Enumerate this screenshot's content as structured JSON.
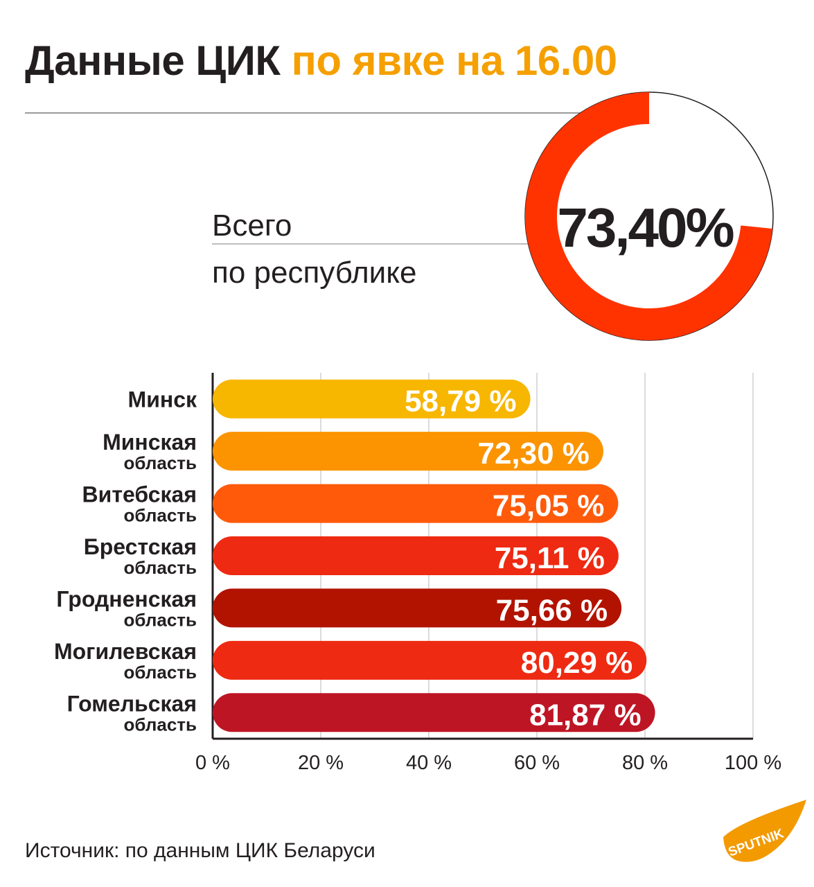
{
  "header": {
    "title_main": "Данные ЦИК",
    "title_highlight": "по явке на 16.00"
  },
  "total": {
    "label_line1": "Всего",
    "label_line2": "по республике",
    "value": 73.4,
    "value_text": "73,40%"
  },
  "chart_data": {
    "type": "bar",
    "orientation": "horizontal",
    "categories": [
      [
        "Минск",
        ""
      ],
      [
        "Минская",
        "область"
      ],
      [
        "Витебская",
        "область"
      ],
      [
        "Брестская",
        "область"
      ],
      [
        "Гродненская",
        "область"
      ],
      [
        "Могилевская",
        "область"
      ],
      [
        "Гомельская",
        "область"
      ]
    ],
    "values": [
      58.79,
      72.3,
      75.05,
      75.11,
      75.66,
      80.29,
      81.87
    ],
    "value_labels": [
      "58,79 %",
      "72,30 %",
      "75,05 %",
      "75,11 %",
      "75,66 %",
      "80,29 %",
      "81,87 %"
    ],
    "colors": [
      "#f7b600",
      "#fb9400",
      "#ff5a0a",
      "#ee2a12",
      "#b21300",
      "#ee2a12",
      "#be1525"
    ],
    "xlim": [
      0,
      100
    ],
    "xticks": [
      0,
      20,
      40,
      60,
      80,
      100
    ],
    "xtick_labels": [
      "0 %",
      "20 %",
      "40 %",
      "60 %",
      "80 %",
      "100 %"
    ],
    "grid": true,
    "title": "",
    "xlabel": "",
    "ylabel": ""
  },
  "colors": {
    "accent_orange": "#f5a000",
    "donut_red": "#ff3300",
    "text_dark": "#231f20"
  },
  "footer": {
    "source": "Источник: по данным ЦИК Беларуси",
    "logo_text": "SPUTNIK"
  }
}
